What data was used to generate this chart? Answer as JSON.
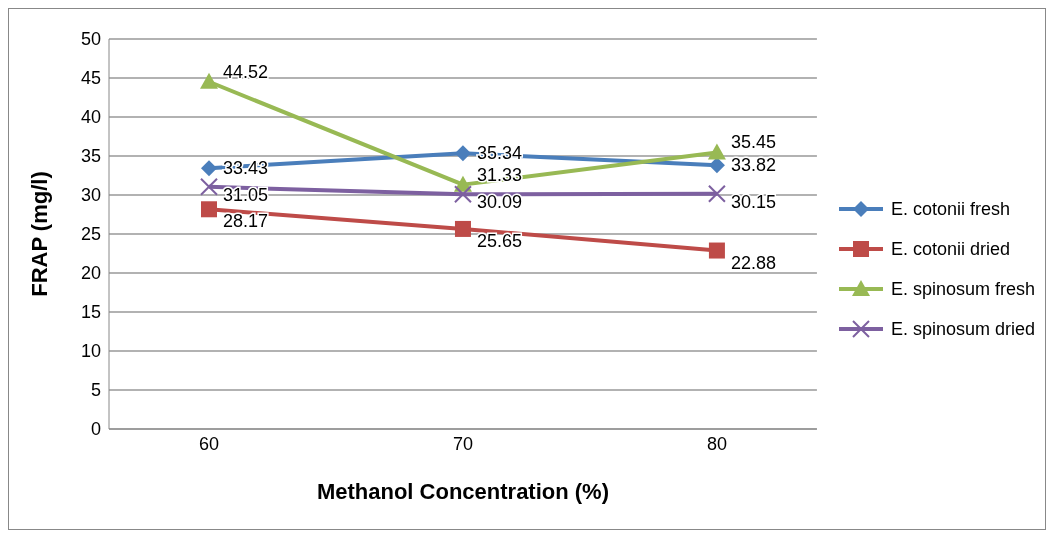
{
  "chart_data": {
    "type": "line",
    "xlabel": "Methanol Concentration (%)",
    "ylabel": "FRAP (mg/l)",
    "categories": [
      "60",
      "70",
      "80"
    ],
    "series": [
      {
        "name": "E. cotonii fresh",
        "color": "#4a7ebb",
        "marker": "diamond",
        "values": [
          33.43,
          35.34,
          33.82
        ]
      },
      {
        "name": "E. cotonii dried",
        "color": "#be4b48",
        "marker": "square",
        "values": [
          28.17,
          25.65,
          22.88
        ]
      },
      {
        "name": "E. spinosum fresh",
        "color": "#98b954",
        "marker": "triangle",
        "values": [
          44.52,
          31.33,
          35.45
        ]
      },
      {
        "name": "E. spinosum dried",
        "color": "#7d60a0",
        "marker": "cross",
        "values": [
          31.05,
          30.09,
          30.15
        ]
      }
    ],
    "ylim": [
      0,
      50
    ],
    "yticks": [
      0,
      5,
      10,
      15,
      20,
      25,
      30,
      35,
      40,
      45,
      50
    ],
    "grid": "y",
    "legend": "right",
    "data_labels": true
  }
}
